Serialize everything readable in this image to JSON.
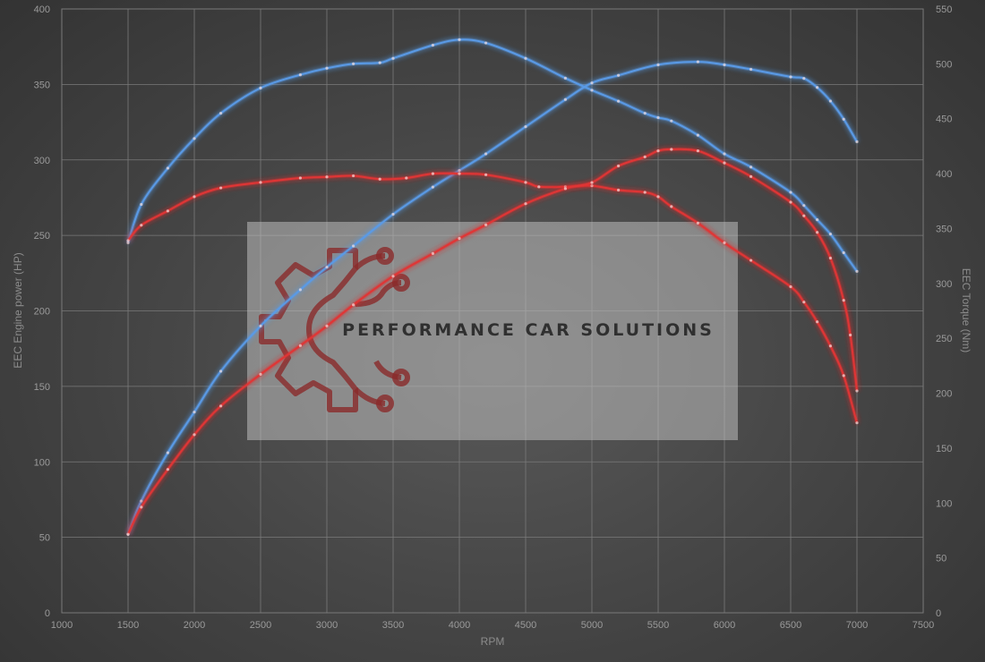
{
  "chart_data": {
    "type": "line",
    "title": "",
    "xlabel": "RPM",
    "ylabel_left": "EEC Engine power (HP)",
    "ylabel_right": "EEC Torque (Nm)",
    "xlim": [
      1000,
      7500
    ],
    "ylim_left": [
      0,
      400
    ],
    "ylim_right": [
      0,
      550
    ],
    "xticks": [
      "1000",
      "1500",
      "2000",
      "2500",
      "3000",
      "3500",
      "4000",
      "4500",
      "5000",
      "5500",
      "6000",
      "6500",
      "7000",
      "7500"
    ],
    "yticks_left": [
      "0",
      "50",
      "100",
      "150",
      "200",
      "250",
      "300",
      "350",
      "400"
    ],
    "yticks_right": [
      "0",
      "50",
      "100",
      "150",
      "200",
      "250",
      "300",
      "350",
      "400",
      "450",
      "500",
      "550"
    ],
    "grid": true,
    "series": [
      {
        "axis": "right",
        "color": "#5a9ae6",
        "x": [
          1500,
          1600,
          1800,
          2000,
          2200,
          2500,
          2800,
          3000,
          3200,
          3400,
          3500,
          3800,
          4000,
          4200,
          4500,
          4800,
          5000,
          5200,
          5400,
          5500,
          5600,
          5800,
          6000,
          6200,
          6500,
          6600,
          6700,
          6800,
          6900,
          7000
        ],
        "values": [
          337,
          372,
          405,
          432,
          455,
          478,
          490,
          496,
          500,
          501,
          505,
          517,
          522,
          519,
          505,
          487,
          476,
          466,
          455,
          451,
          448,
          435,
          418,
          406,
          383,
          371,
          358,
          345,
          328,
          311
        ]
      },
      {
        "axis": "left",
        "color": "#5a9ae6",
        "x": [
          1500,
          1600,
          1800,
          2000,
          2200,
          2500,
          2800,
          3000,
          3200,
          3500,
          3800,
          4000,
          4200,
          4500,
          4800,
          5000,
          5200,
          5500,
          5800,
          6000,
          6200,
          6500,
          6600,
          6700,
          6800,
          6900,
          7000
        ],
        "values": [
          52,
          74,
          106,
          133,
          160,
          190,
          214,
          229,
          243,
          264,
          282,
          293,
          304,
          322,
          340,
          351,
          356,
          363,
          365,
          363,
          360,
          355,
          354,
          348,
          339,
          327,
          312
        ]
      },
      {
        "axis": "right",
        "color": "#e03535",
        "x": [
          1500,
          1600,
          1800,
          2000,
          2200,
          2500,
          2800,
          3000,
          3200,
          3400,
          3600,
          3800,
          4000,
          4200,
          4500,
          4600,
          4800,
          5000,
          5200,
          5400,
          5500,
          5600,
          5800,
          6000,
          6200,
          6500,
          6600,
          6700,
          6800,
          6900,
          7000
        ],
        "values": [
          339,
          353,
          366,
          379,
          387,
          392,
          396,
          397,
          398,
          395,
          396,
          400,
          400,
          399,
          392,
          388,
          388,
          389,
          385,
          383,
          379,
          370,
          355,
          337,
          321,
          297,
          283,
          265,
          243,
          216,
          173
        ]
      },
      {
        "axis": "left",
        "color": "#e03535",
        "x": [
          1500,
          1600,
          1800,
          2000,
          2200,
          2500,
          2800,
          3000,
          3200,
          3500,
          3800,
          4000,
          4200,
          4500,
          4800,
          5000,
          5200,
          5400,
          5500,
          5600,
          5800,
          6000,
          6200,
          6500,
          6600,
          6700,
          6800,
          6900,
          6950,
          7000
        ],
        "values": [
          52,
          70,
          95,
          118,
          137,
          158,
          177,
          190,
          204,
          223,
          238,
          248,
          257,
          271,
          281,
          285,
          296,
          302,
          306,
          307,
          306,
          298,
          289,
          272,
          263,
          252,
          235,
          207,
          184,
          147
        ]
      }
    ],
    "annotations": {
      "watermark_text": "PERFORMANCE CAR SOLUTIONS"
    }
  }
}
